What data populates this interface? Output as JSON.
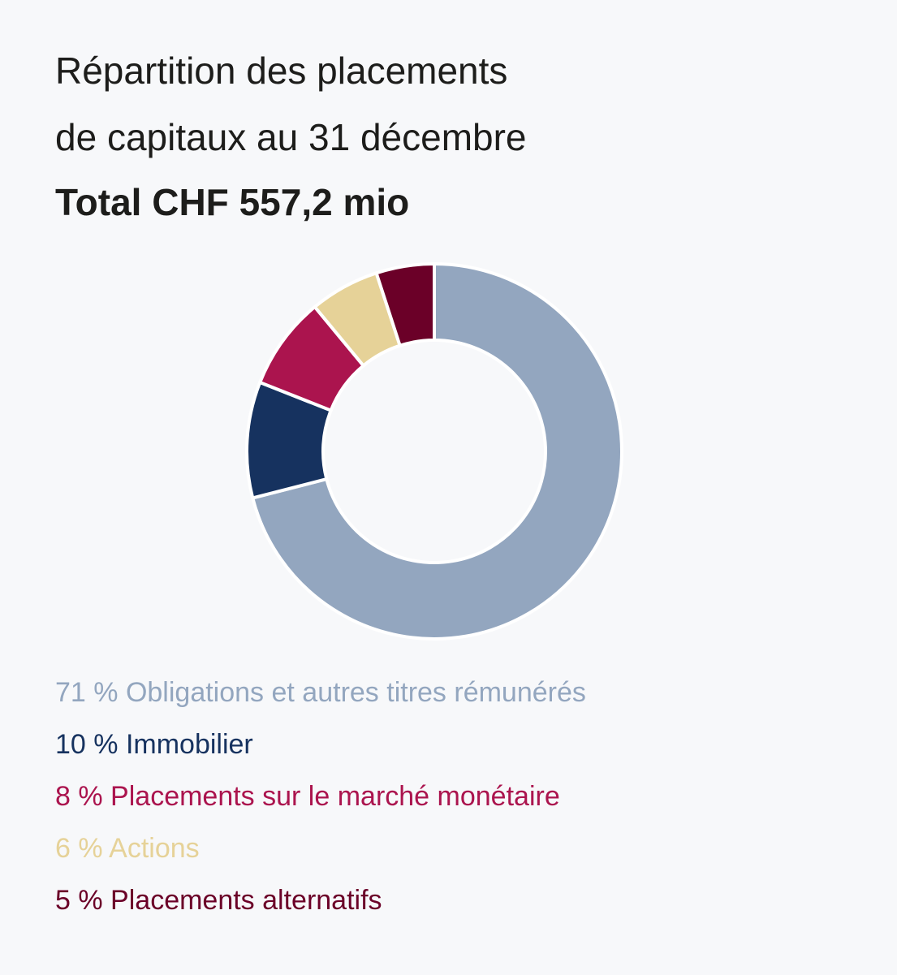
{
  "chart_data": {
    "type": "donut",
    "title": "Répartition des placements de capitaux au 31 décembre",
    "subtitle": "Total CHF 557,2 mio",
    "categories": [
      "Obligations et autres titres rémunérés",
      "Immobilier",
      "Placements sur le marché monétaire",
      "Actions",
      "Placements alternatifs"
    ],
    "values": [
      71,
      10,
      8,
      6,
      5
    ],
    "value_labels": [
      "71 %",
      "10 %",
      "8 %",
      "6 %",
      "5 %"
    ],
    "colors": [
      "#93a6bf",
      "#16325f",
      "#ab144e",
      "#e6d298",
      "#6b0028"
    ]
  }
}
